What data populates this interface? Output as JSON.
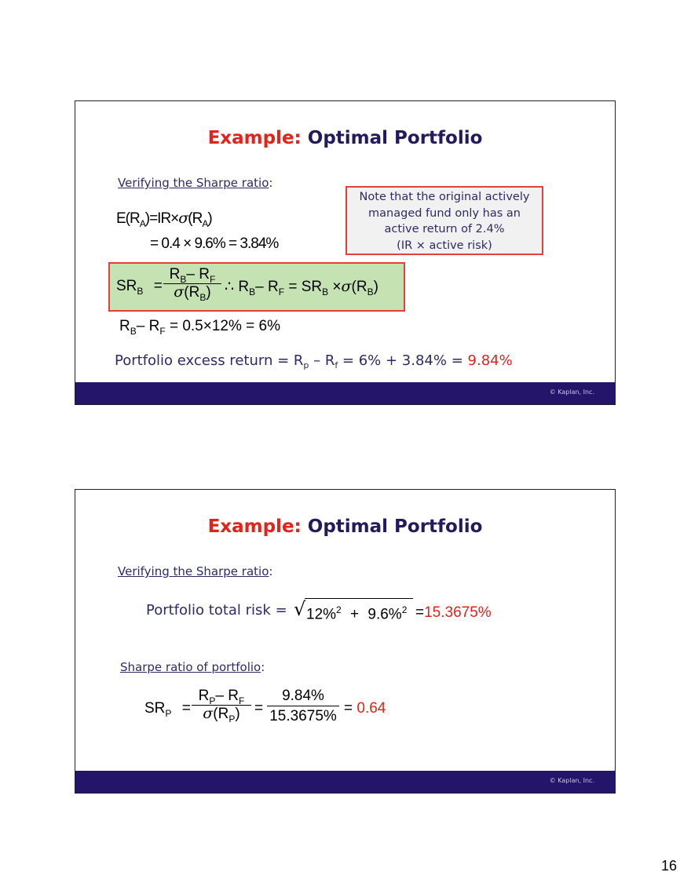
{
  "slide1": {
    "title_highlight": "Example:",
    "title_rest": "Optimal Portfolio",
    "subtitle_link": "Verifying the Sharpe ratio",
    "subtitle_colon": ":",
    "eq1": {
      "lhs": "E(R",
      "sub_a": "A",
      "mid": ")=IR×",
      "sigma": "σ",
      "tail": "(R",
      "sub_a2": "A",
      "end": ")"
    },
    "eq2": "= 0.4 × 9.6% = 3.84%",
    "note_lines": [
      "Note that the original actively",
      "managed fund only has an",
      "active return of 2.4%",
      "(IR  ×  active risk)"
    ],
    "sr_formula": {
      "sr": "SR",
      "sub_b": "B",
      "eq": "=",
      "num_r": "R",
      "num_sub_b": "B",
      "num_minus": "– R",
      "num_sub_f": "F",
      "den_sigma": "σ",
      "den_r": "(R",
      "den_sub_b": "B",
      "den_end": ")",
      "therefore": "∴",
      "rhs_r": "R",
      "rhs_sub_b": "B",
      "rhs_minus": "– R",
      "rhs_sub_f": "F",
      "rhs_eq": "= SR",
      "rhs_sub_b2": "B",
      "rhs_times": "×",
      "rhs_sigma": "σ",
      "rhs_r2": "(R",
      "rhs_sub_b3": "B",
      "rhs_end": ")"
    },
    "eq_rb": {
      "r": "R",
      "sub_b": "B",
      "minus": "– R",
      "sub_f": "F",
      "rest": " = 0.5×12% = 6%"
    },
    "excess": {
      "prefix": "Portfolio excess return = R",
      "sub_p": "p",
      "mid": " – R",
      "sub_f": "f",
      "rest": " = 6% + 3.84% = ",
      "result": "9.84%"
    },
    "copyright": "© Kaplan, Inc."
  },
  "slide2": {
    "title_highlight": "Example:",
    "title_rest": "Optimal Portfolio",
    "subtitle_link": "Verifying the Sharpe ratio",
    "subtitle_colon": ":",
    "total_risk_label": "Portfolio total risk = ",
    "sqrt_sign": "√",
    "radicand_a": "12%",
    "exp_a": "2",
    "plus": "+",
    "radicand_b": "9.6%",
    "exp_b": "2",
    "risk_eq": "=",
    "risk_result": "15.3675%",
    "sharpe_link": "Sharpe ratio of portfolio",
    "sharpe_colon": ":",
    "srp": {
      "sr": "SR",
      "sub_p": "P",
      "eq": "=",
      "num_r": "R",
      "num_sub_p": "P",
      "num_minus": "– R",
      "num_sub_f": "F",
      "den_sigma": "σ",
      "den_r": "(R",
      "den_sub_p": "P",
      "den_end": ")",
      "eq2": "=",
      "num2": "9.84%",
      "den2": "15.3675%",
      "eq3": "=",
      "result": "0.64"
    },
    "copyright": "© Kaplan, Inc."
  },
  "page_number": "16"
}
